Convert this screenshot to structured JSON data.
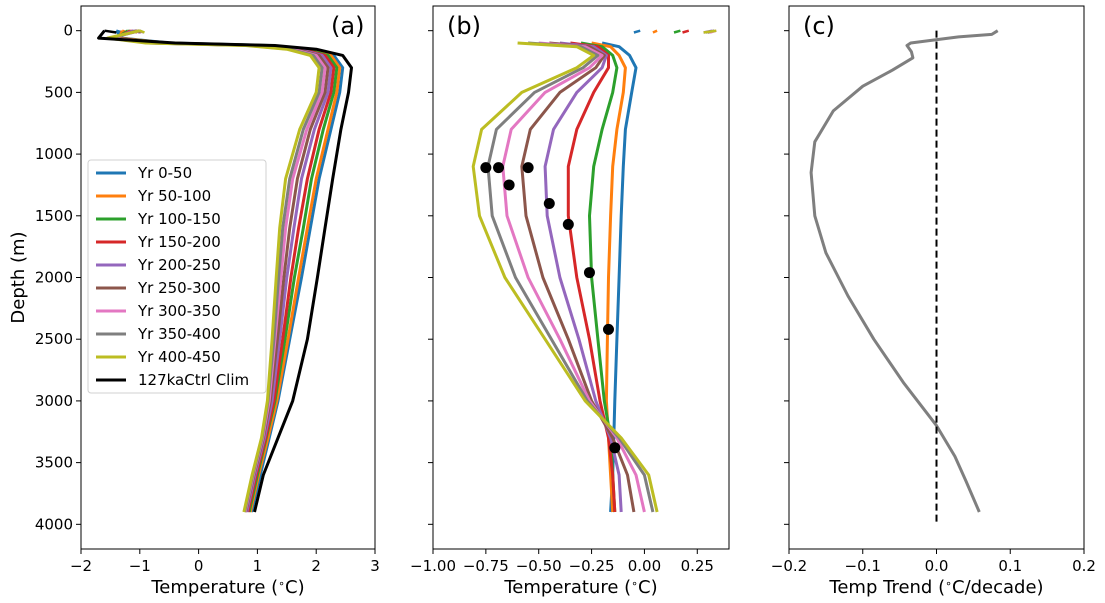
{
  "chart_data": [
    {
      "type": "line",
      "panel_label": "(a)",
      "xlabel": "Temperature ($^\\circ$C)",
      "ylabel": "Depth (m)",
      "xlim": [
        -2,
        3
      ],
      "ylim": [
        4200,
        -200
      ],
      "xticks": [
        "−2",
        "−1",
        "0",
        "1",
        "2",
        "3"
      ],
      "xtick_values": [
        -2,
        -1,
        0,
        1,
        2,
        3
      ],
      "yticks": [
        "0",
        "500",
        "1000",
        "1500",
        "2000",
        "2500",
        "3000",
        "3500",
        "4000"
      ],
      "ytick_values": [
        0,
        500,
        1000,
        1500,
        2000,
        2500,
        3000,
        3500,
        4000
      ],
      "legend_position": "center-left",
      "depth": [
        0,
        60,
        100,
        120,
        150,
        200,
        300,
        500,
        800,
        1200,
        1600,
        2000,
        2500,
        3000,
        3300,
        3600,
        3900
      ],
      "series": [
        {
          "name": "Yr 0-50",
          "color": "#1f77b4",
          "x": [
            -1.4,
            -1.3,
            -0.5,
            1.2,
            1.9,
            2.3,
            2.45,
            2.4,
            2.25,
            2.05,
            1.9,
            1.75,
            1.55,
            1.35,
            1.2,
            1.05,
            0.9
          ],
          "x_surface": [
            -1.4,
            -1.3
          ]
        },
        {
          "name": "Yr 50-100",
          "color": "#ff7f0e",
          "x": [
            -1.3,
            -1.35,
            -0.55,
            1.15,
            1.85,
            2.25,
            2.4,
            2.35,
            2.2,
            2.0,
            1.85,
            1.7,
            1.52,
            1.33,
            1.18,
            1.02,
            0.88
          ],
          "x_surface": [
            -1.3,
            -1.2
          ]
        },
        {
          "name": "Yr 100-150",
          "color": "#2ca02c",
          "x": [
            -1.2,
            -1.4,
            -0.6,
            1.1,
            1.8,
            2.2,
            2.35,
            2.3,
            2.12,
            1.92,
            1.78,
            1.63,
            1.47,
            1.3,
            1.15,
            1.0,
            0.86
          ],
          "x_surface": [
            -1.2,
            -1.1
          ]
        },
        {
          "name": "Yr 150-200",
          "color": "#d62728",
          "x": [
            -1.15,
            -1.42,
            -0.65,
            1.05,
            1.75,
            2.15,
            2.3,
            2.25,
            2.05,
            1.85,
            1.7,
            1.57,
            1.43,
            1.28,
            1.14,
            0.98,
            0.84
          ],
          "x_surface": [
            -1.15,
            -1.05
          ]
        },
        {
          "name": "Yr 200-250",
          "color": "#9467bd",
          "x": [
            -1.1,
            -1.45,
            -0.7,
            1.0,
            1.7,
            2.1,
            2.25,
            2.2,
            1.97,
            1.75,
            1.62,
            1.5,
            1.38,
            1.25,
            1.12,
            0.96,
            0.82
          ],
          "x_surface": [
            -1.1,
            -1.0
          ]
        },
        {
          "name": "Yr 250-300",
          "color": "#8c564b",
          "x": [
            -1.05,
            -1.47,
            -0.75,
            0.95,
            1.65,
            2.05,
            2.2,
            2.15,
            1.9,
            1.68,
            1.55,
            1.45,
            1.34,
            1.22,
            1.1,
            0.94,
            0.8
          ],
          "x_surface": [
            -1.05,
            -0.98
          ]
        },
        {
          "name": "Yr 300-350",
          "color": "#e377c2",
          "x": [
            -1.0,
            -1.5,
            -0.8,
            0.9,
            1.6,
            2.0,
            2.15,
            2.1,
            1.84,
            1.6,
            1.48,
            1.4,
            1.3,
            1.2,
            1.09,
            0.93,
            0.79
          ],
          "x_surface": [
            -1.0,
            -0.95
          ]
        },
        {
          "name": "Yr 350-400",
          "color": "#7f7f7f",
          "x": [
            -1.0,
            -1.52,
            -0.85,
            0.85,
            1.55,
            1.95,
            2.1,
            2.05,
            1.78,
            1.55,
            1.43,
            1.36,
            1.28,
            1.18,
            1.08,
            0.92,
            0.78
          ],
          "x_surface": [
            -1.0,
            -0.93
          ]
        },
        {
          "name": "Yr 400-450",
          "color": "#bcbd22",
          "x": [
            -1.0,
            -1.55,
            -0.9,
            0.8,
            1.5,
            1.9,
            2.05,
            2.0,
            1.72,
            1.48,
            1.38,
            1.32,
            1.25,
            1.17,
            1.07,
            0.91,
            0.77
          ],
          "x_surface": [
            -1.0,
            -0.92
          ]
        },
        {
          "name": "127kaCtrl Clim",
          "color": "#000000",
          "x": [
            -1.6,
            -1.7,
            -0.4,
            1.3,
            2.0,
            2.45,
            2.6,
            2.55,
            2.42,
            2.28,
            2.15,
            2.02,
            1.85,
            1.6,
            1.35,
            1.1,
            0.95
          ],
          "x_surface": [
            -1.6,
            -1.4
          ]
        }
      ]
    },
    {
      "type": "line",
      "panel_label": "(b)",
      "xlabel": "Temperature ($^\\circ$C)",
      "xlim": [
        -1.0,
        0.4
      ],
      "ylim": [
        4200,
        -200
      ],
      "xticks": [
        "−1.00",
        "−0.75",
        "−0.50",
        "−0.25",
        "0.00",
        "0.25"
      ],
      "xtick_values": [
        -1.0,
        -0.75,
        -0.5,
        -0.25,
        0.0,
        0.25
      ],
      "depth": [
        100,
        130,
        200,
        300,
        500,
        800,
        1100,
        1500,
        2000,
        2500,
        3000,
        3300,
        3600,
        3900
      ],
      "series": [
        {
          "name": "Yr 0-50",
          "color": "#1f77b4",
          "x": [
            -0.2,
            -0.12,
            -0.07,
            -0.04,
            -0.06,
            -0.09,
            -0.1,
            -0.11,
            -0.12,
            -0.13,
            -0.14,
            -0.145,
            -0.15,
            -0.16
          ],
          "surface": [
            -0.05,
            -0.02
          ]
        },
        {
          "name": "Yr 50-100",
          "color": "#ff7f0e",
          "x": [
            -0.25,
            -0.16,
            -0.12,
            -0.09,
            -0.1,
            -0.13,
            -0.15,
            -0.16,
            -0.17,
            -0.175,
            -0.18,
            -0.17,
            -0.16,
            -0.15
          ],
          "surface": [
            0.04,
            0.06
          ]
        },
        {
          "name": "Yr 100-150",
          "color": "#2ca02c",
          "x": [
            -0.3,
            -0.2,
            -0.15,
            -0.13,
            -0.15,
            -0.2,
            -0.24,
            -0.26,
            -0.25,
            -0.22,
            -0.19,
            -0.16,
            -0.15,
            -0.14
          ],
          "surface": [
            0.14,
            0.17
          ]
        },
        {
          "name": "Yr 150-200",
          "color": "#d62728",
          "x": [
            -0.35,
            -0.22,
            -0.17,
            -0.17,
            -0.24,
            -0.32,
            -0.36,
            -0.36,
            -0.32,
            -0.26,
            -0.21,
            -0.17,
            -0.15,
            -0.14
          ],
          "surface": [
            0.18,
            0.21
          ]
        },
        {
          "name": "Yr 200-250",
          "color": "#9467bd",
          "x": [
            -0.4,
            -0.24,
            -0.18,
            -0.2,
            -0.32,
            -0.43,
            -0.47,
            -0.46,
            -0.4,
            -0.31,
            -0.23,
            -0.16,
            -0.12,
            -0.11
          ],
          "surface": [
            0.28,
            0.32
          ]
        },
        {
          "name": "Yr 250-300",
          "color": "#8c564b",
          "x": [
            -0.45,
            -0.26,
            -0.19,
            -0.23,
            -0.4,
            -0.54,
            -0.58,
            -0.56,
            -0.48,
            -0.36,
            -0.25,
            -0.15,
            -0.08,
            -0.05
          ],
          "surface": [
            0.3,
            0.33
          ]
        },
        {
          "name": "Yr 300-350",
          "color": "#e377c2",
          "x": [
            -0.5,
            -0.28,
            -0.2,
            -0.26,
            -0.47,
            -0.63,
            -0.67,
            -0.65,
            -0.55,
            -0.4,
            -0.26,
            -0.13,
            -0.04,
            0.0
          ],
          "surface": [
            0.31,
            0.34
          ]
        },
        {
          "name": "Yr 350-400",
          "color": "#7f7f7f",
          "x": [
            -0.55,
            -0.3,
            -0.22,
            -0.29,
            -0.52,
            -0.7,
            -0.74,
            -0.72,
            -0.61,
            -0.44,
            -0.27,
            -0.12,
            0.0,
            0.04
          ],
          "surface": [
            0.29,
            0.33
          ]
        },
        {
          "name": "Yr 400-450",
          "color": "#bcbd22",
          "x": [
            -0.6,
            -0.32,
            -0.24,
            -0.32,
            -0.58,
            -0.77,
            -0.81,
            -0.78,
            -0.66,
            -0.47,
            -0.28,
            -0.11,
            0.02,
            0.06
          ],
          "surface": [
            0.28,
            0.34
          ]
        }
      ],
      "markers": [
        {
          "x": -0.75,
          "y": 1110
        },
        {
          "x": -0.69,
          "y": 1110
        },
        {
          "x": -0.55,
          "y": 1110
        },
        {
          "x": -0.64,
          "y": 1250
        },
        {
          "x": -0.45,
          "y": 1400
        },
        {
          "x": -0.36,
          "y": 1570
        },
        {
          "x": -0.26,
          "y": 1960
        },
        {
          "x": -0.17,
          "y": 2420
        },
        {
          "x": -0.14,
          "y": 3380
        }
      ]
    },
    {
      "type": "line",
      "panel_label": "(c)",
      "xlabel": "Temp Trend ($^\\circ$C/decade)",
      "xlim": [
        -0.2,
        0.2
      ],
      "ylim": [
        4200,
        -200
      ],
      "xticks": [
        "−0.2",
        "−0.1",
        "0.0",
        "0.1",
        "0.2"
      ],
      "xtick_values": [
        -0.2,
        -0.1,
        0.0,
        0.1,
        0.2
      ],
      "series": [
        {
          "name": "",
          "color": "#7f7f7f",
          "x": [
            0.083,
            0.075,
            0.03,
            -0.01,
            -0.035,
            -0.04,
            -0.034,
            -0.032,
            -0.06,
            -0.1,
            -0.14,
            -0.165,
            -0.17,
            -0.165,
            -0.15,
            -0.12,
            -0.085,
            -0.045,
            0.0,
            0.025,
            0.04,
            0.058
          ],
          "y": [
            0,
            30,
            50,
            80,
            100,
            120,
            170,
            220,
            320,
            450,
            650,
            900,
            1150,
            1500,
            1800,
            2150,
            2500,
            2850,
            3200,
            3450,
            3650,
            3900
          ]
        }
      ],
      "reference_line": {
        "x": 0,
        "y": [
          0,
          4000
        ],
        "style": "dashed",
        "color": "#000000"
      }
    }
  ]
}
